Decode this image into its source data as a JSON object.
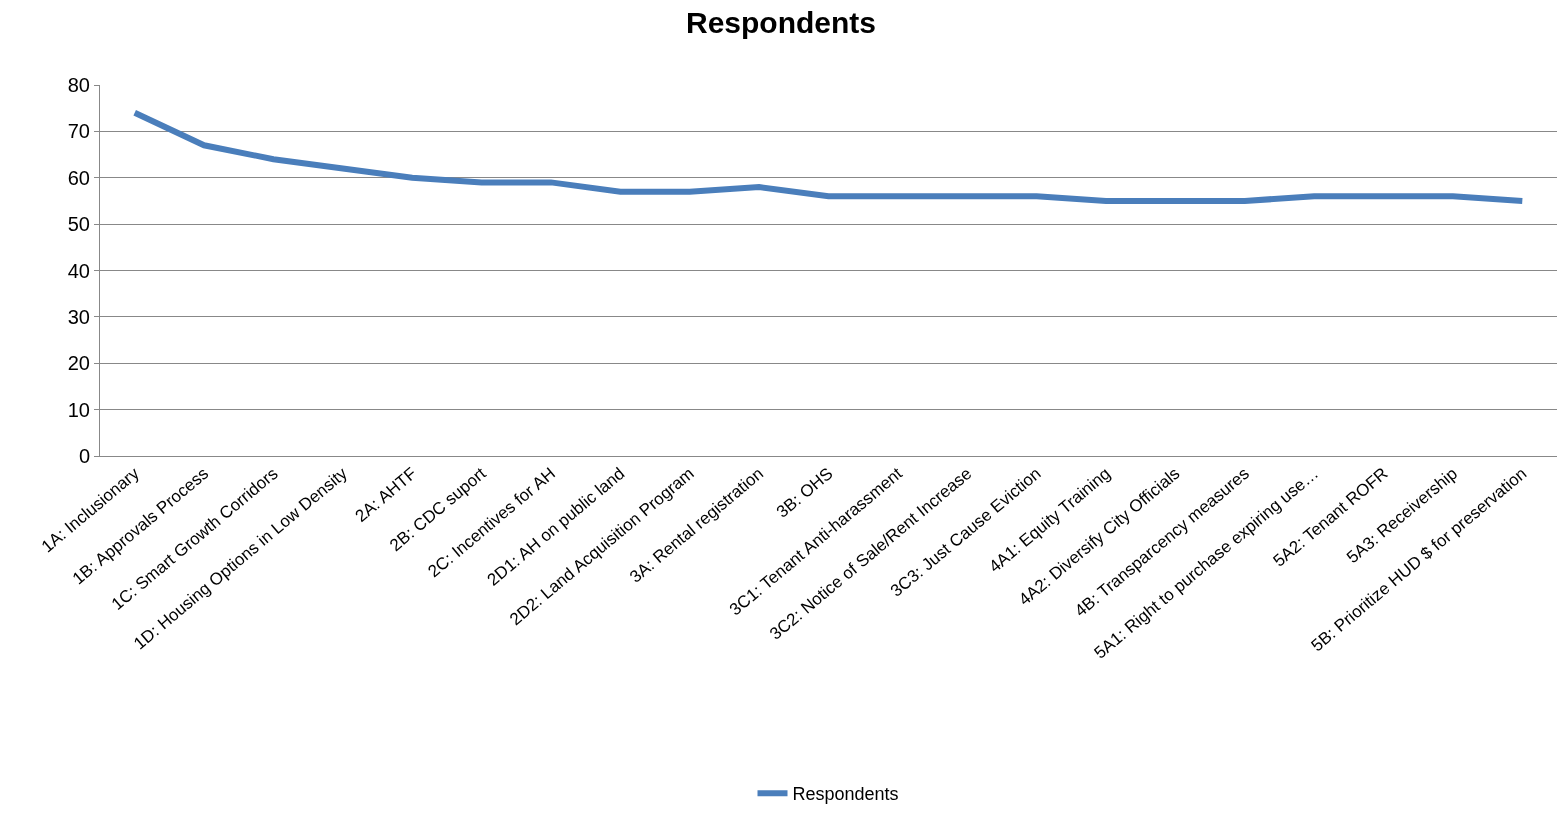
{
  "chart_data": {
    "type": "line",
    "title": "Respondents",
    "categories": [
      "1A: Inclusionary",
      "1B: Approvals Process",
      "1C: Smart Growth Corridors",
      "1D: Housing Options in Low Density",
      "2A: AHTF",
      "2B: CDC suport",
      "2C: Incentives for AH",
      "2D1: AH on public land",
      "2D2: Land Acquisition Program",
      "3A: Rental registration",
      "3B: OHS",
      "3C1: Tenant Anti-harassment",
      "3C2: Notice of Sale/Rent Increase",
      "3C3: Just Cause Eviction",
      "4A1: Equity Training",
      "4A2: Diversify City Officials",
      "4B: Transparcency measures",
      "5A1: Right to purchase expiring use…",
      "5A2: Tenant ROFR",
      "5A3: Receivership",
      "5B: Prioritize HUD $ for preservation"
    ],
    "series": [
      {
        "name": "Respondents",
        "color": "#4a7ebb",
        "values": [
          74,
          67,
          64,
          62,
          60,
          59,
          59,
          57,
          57,
          58,
          56,
          56,
          56,
          56,
          55,
          55,
          55,
          56,
          56,
          56,
          55
        ]
      }
    ],
    "ylim": [
      0,
      80
    ],
    "yticks": [
      0,
      10,
      20,
      30,
      40,
      50,
      60,
      70,
      80
    ],
    "grid": "y",
    "legend": "bottom",
    "marker": "none",
    "line_style": "solid"
  }
}
